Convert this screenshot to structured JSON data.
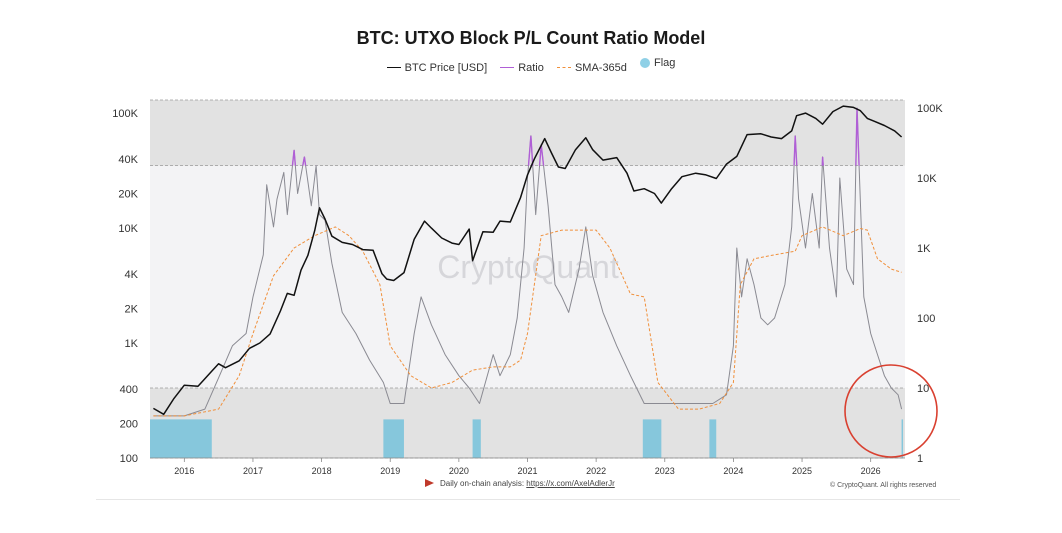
{
  "chart_data": {
    "type": "line",
    "title": "BTC: UTXO Block P/L Count Ratio Model",
    "legend": [
      {
        "name": "BTC Price [USD]",
        "color": "#111111",
        "style": "line"
      },
      {
        "name": "Ratio",
        "color": "#b05fd6",
        "style": "line"
      },
      {
        "name": "SMA-365d",
        "color": "#f0903c",
        "style": "dashed"
      },
      {
        "name": "Flag",
        "color": "#8fd0e6",
        "style": "dot"
      }
    ],
    "watermark": "CryptoQuant",
    "x_ticks": [
      "2016",
      "2017",
      "2018",
      "2019",
      "2020",
      "2021",
      "2022",
      "2023",
      "2024",
      "2025",
      "2026"
    ],
    "xlim": [
      2015.5,
      2026.5
    ],
    "y_left": {
      "scale": "log",
      "range": [
        100,
        130000
      ],
      "ticks": [
        {
          "v": 100,
          "label": "100"
        },
        {
          "v": 200,
          "label": "200"
        },
        {
          "v": 400,
          "label": "400"
        },
        {
          "v": 1000,
          "label": "1K"
        },
        {
          "v": 2000,
          "label": "2K"
        },
        {
          "v": 4000,
          "label": "4K"
        },
        {
          "v": 10000,
          "label": "10K"
        },
        {
          "v": 20000,
          "label": "20K"
        },
        {
          "v": 40000,
          "label": "40K"
        },
        {
          "v": 100000,
          "label": "100K"
        }
      ]
    },
    "y_right": {
      "scale": "log",
      "range": [
        1,
        130000
      ],
      "ticks": [
        {
          "v": 1,
          "label": "1"
        },
        {
          "v": 10,
          "label": "10"
        },
        {
          "v": 100,
          "label": "100"
        },
        {
          "v": 1000,
          "label": "1K"
        },
        {
          "v": 10000,
          "label": "10K"
        },
        {
          "v": 100000,
          "label": "100K"
        }
      ]
    },
    "bands": [
      {
        "axis": "right",
        "from": 15000,
        "to": 130000,
        "color": "#e2e2e2"
      },
      {
        "axis": "right",
        "from": 1,
        "to": 10,
        "color": "#e2e2e2"
      }
    ],
    "series": [
      {
        "name": "BTC Price [USD]",
        "axis": "left",
        "color": "#111111",
        "x": [
          2015.55,
          2015.7,
          2015.85,
          2016.0,
          2016.2,
          2016.4,
          2016.5,
          2016.6,
          2016.8,
          2016.95,
          2017.1,
          2017.25,
          2017.4,
          2017.5,
          2017.6,
          2017.7,
          2017.8,
          2017.9,
          2017.97,
          2018.05,
          2018.15,
          2018.3,
          2018.45,
          2018.6,
          2018.75,
          2018.88,
          2018.95,
          2019.05,
          2019.2,
          2019.35,
          2019.5,
          2019.6,
          2019.75,
          2019.9,
          2020.0,
          2020.15,
          2020.2,
          2020.35,
          2020.5,
          2020.6,
          2020.75,
          2020.9,
          2021.0,
          2021.1,
          2021.25,
          2021.35,
          2021.45,
          2021.55,
          2021.7,
          2021.85,
          2021.95,
          2022.1,
          2022.3,
          2022.45,
          2022.55,
          2022.7,
          2022.85,
          2022.95,
          2023.1,
          2023.25,
          2023.45,
          2023.6,
          2023.75,
          2023.9,
          2024.05,
          2024.2,
          2024.4,
          2024.55,
          2024.7,
          2024.85,
          2024.92,
          2025.05,
          2025.2,
          2025.3,
          2025.45,
          2025.6,
          2025.75,
          2025.85,
          2025.95,
          2026.05,
          2026.2,
          2026.35,
          2026.45
        ],
        "values": [
          270,
          240,
          330,
          430,
          420,
          570,
          660,
          610,
          700,
          900,
          1000,
          1200,
          1900,
          2700,
          2600,
          4300,
          5800,
          9500,
          15000,
          12000,
          8500,
          7500,
          7200,
          6500,
          6400,
          4000,
          3600,
          3500,
          4100,
          8000,
          11500,
          10000,
          8200,
          7400,
          7200,
          9800,
          5200,
          9300,
          9200,
          11500,
          11300,
          18500,
          29000,
          40000,
          60000,
          45000,
          34000,
          33000,
          48000,
          61000,
          48000,
          39000,
          41000,
          30000,
          21000,
          22000,
          20000,
          16500,
          22000,
          28000,
          30000,
          29000,
          27000,
          36000,
          42000,
          65000,
          66000,
          62000,
          60000,
          70000,
          95000,
          100000,
          90000,
          80000,
          103000,
          115000,
          112000,
          105000,
          90000,
          85000,
          78000,
          70000,
          62000
        ]
      },
      {
        "name": "Ratio",
        "axis": "right",
        "color": "#8a8a92",
        "x": [
          2015.55,
          2015.8,
          2016.0,
          2016.3,
          2016.5,
          2016.7,
          2016.9,
          2017.0,
          2017.15,
          2017.2,
          2017.3,
          2017.35,
          2017.45,
          2017.5,
          2017.6,
          2017.65,
          2017.75,
          2017.85,
          2017.92,
          2017.97,
          2018.05,
          2018.15,
          2018.3,
          2018.5,
          2018.7,
          2018.9,
          2019.0,
          2019.2,
          2019.35,
          2019.45,
          2019.6,
          2019.8,
          2020.0,
          2020.15,
          2020.3,
          2020.5,
          2020.6,
          2020.75,
          2020.85,
          2020.95,
          2021.0,
          2021.05,
          2021.12,
          2021.2,
          2021.3,
          2021.4,
          2021.5,
          2021.6,
          2021.75,
          2021.85,
          2021.95,
          2022.1,
          2022.3,
          2022.5,
          2022.7,
          2022.9,
          2023.1,
          2023.3,
          2023.5,
          2023.7,
          2023.9,
          2024.0,
          2024.05,
          2024.12,
          2024.2,
          2024.3,
          2024.4,
          2024.5,
          2024.6,
          2024.75,
          2024.85,
          2024.9,
          2024.95,
          2025.05,
          2025.15,
          2025.25,
          2025.3,
          2025.4,
          2025.5,
          2025.55,
          2025.65,
          2025.75,
          2025.8,
          2025.9,
          2026.0,
          2026.1,
          2026.2,
          2026.3,
          2026.4,
          2026.45
        ],
        "values": [
          4,
          4,
          4,
          5,
          14,
          40,
          60,
          200,
          800,
          8000,
          2000,
          5000,
          12000,
          3000,
          25000,
          6000,
          20000,
          4000,
          15000,
          3000,
          2500,
          600,
          120,
          60,
          25,
          12,
          6,
          6,
          60,
          200,
          80,
          30,
          15,
          10,
          6,
          30,
          15,
          30,
          100,
          1000,
          10000,
          40000,
          3000,
          30000,
          4000,
          300,
          200,
          120,
          500,
          2000,
          400,
          120,
          40,
          15,
          6,
          6,
          6,
          6,
          6,
          6,
          8,
          40,
          1000,
          200,
          700,
          300,
          100,
          80,
          100,
          300,
          2000,
          40000,
          5000,
          1000,
          6000,
          1000,
          20000,
          1000,
          200,
          10000,
          500,
          300,
          100000,
          200,
          60,
          30,
          15,
          10,
          8,
          5
        ]
      },
      {
        "name": "SMA-365d",
        "axis": "right",
        "color": "#f0903c",
        "x": [
          2015.55,
          2016.0,
          2016.5,
          2016.8,
          2017.0,
          2017.3,
          2017.6,
          2017.9,
          2018.2,
          2018.4,
          2018.6,
          2018.85,
          2019.0,
          2019.3,
          2019.6,
          2019.9,
          2020.2,
          2020.5,
          2020.75,
          2020.9,
          2021.0,
          2021.2,
          2021.5,
          2021.9,
          2022.0,
          2022.2,
          2022.5,
          2022.7,
          2022.9,
          2023.2,
          2023.5,
          2023.8,
          2024.0,
          2024.1,
          2024.3,
          2024.6,
          2024.9,
          2025.0,
          2025.3,
          2025.6,
          2025.85,
          2025.95,
          2026.1,
          2026.3,
          2026.45
        ],
        "values": [
          4,
          4,
          5,
          15,
          60,
          400,
          1000,
          1500,
          2000,
          1500,
          900,
          300,
          40,
          15,
          10,
          12,
          18,
          20,
          20,
          25,
          60,
          1500,
          1800,
          1800,
          1800,
          1000,
          220,
          200,
          12,
          5,
          5,
          6,
          12,
          300,
          700,
          800,
          900,
          1500,
          2000,
          1500,
          1900,
          1800,
          700,
          500,
          450
        ]
      }
    ],
    "ratio_highlight": {
      "name": "Ratio",
      "color": "#b05fd6",
      "above": 15000
    },
    "flag": {
      "name": "Flag",
      "color": "#7cc4dc",
      "ranges": [
        [
          2015.5,
          2016.4
        ],
        [
          2018.9,
          2019.2
        ],
        [
          2020.2,
          2020.32
        ],
        [
          2022.68,
          2022.95
        ],
        [
          2023.65,
          2023.75
        ],
        [
          2026.45,
          2026.47
        ]
      ]
    }
  },
  "footer": {
    "note_prefix": "Daily on-chain analysis: ",
    "note_link": "https://x.com/AxelAdlerJr",
    "copyright": "© CryptoQuant. All rights reserved"
  }
}
